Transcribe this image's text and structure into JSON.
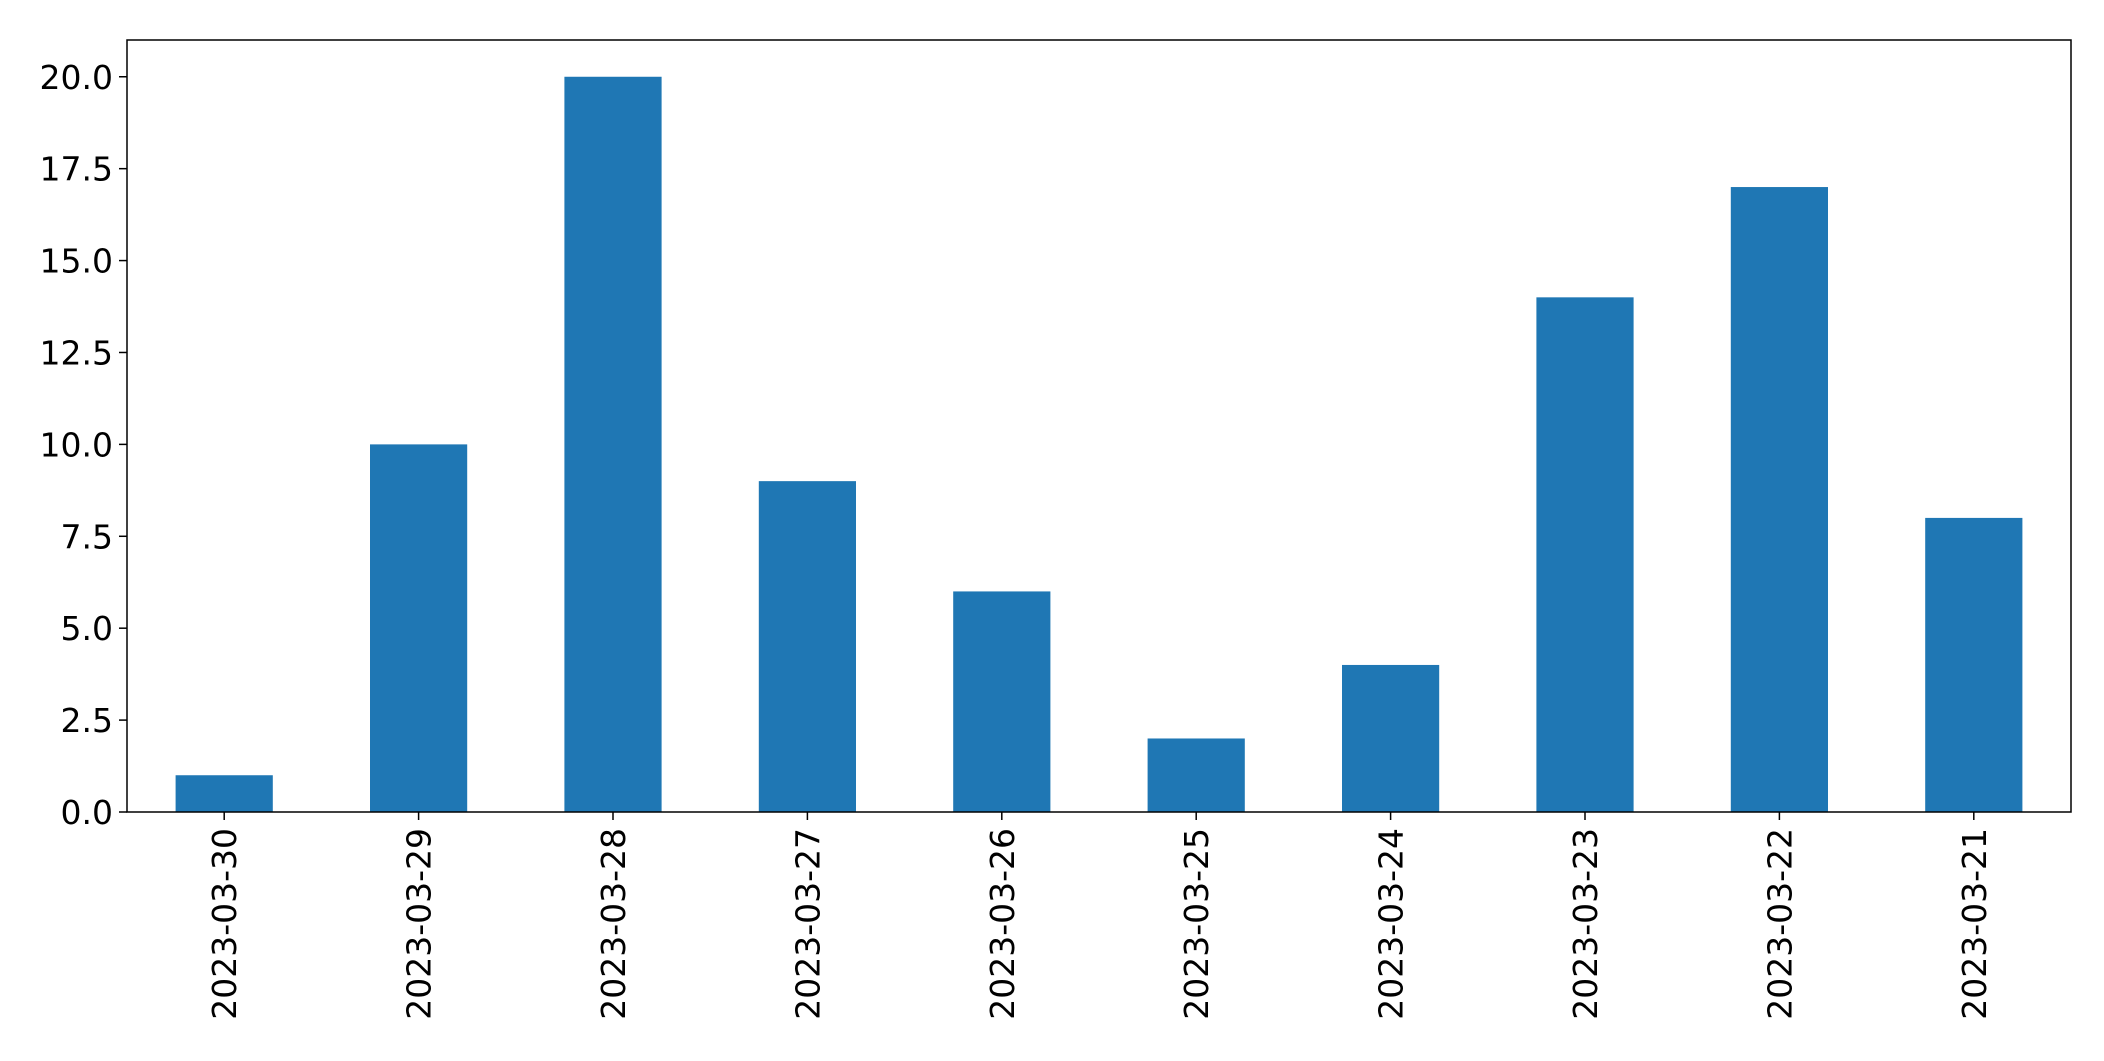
{
  "colors": {
    "bar": "#1f77b4",
    "axis": "#000000",
    "background": "#ffffff"
  },
  "chart_data": {
    "type": "bar",
    "title": "",
    "xlabel": "",
    "ylabel": "",
    "categories": [
      "2023-03-30",
      "2023-03-29",
      "2023-03-28",
      "2023-03-27",
      "2023-03-26",
      "2023-03-25",
      "2023-03-24",
      "2023-03-23",
      "2023-03-22",
      "2023-03-21"
    ],
    "values": [
      1,
      10,
      20,
      9,
      6,
      2,
      4,
      14,
      17,
      8
    ],
    "ylim": [
      0,
      21
    ],
    "yticks": [
      0.0,
      2.5,
      5.0,
      7.5,
      10.0,
      12.5,
      15.0,
      17.5,
      20.0
    ],
    "ytick_labels": [
      "0.0",
      "2.5",
      "5.0",
      "7.5",
      "10.0",
      "12.5",
      "15.0",
      "17.5",
      "20.0"
    ],
    "x_tick_rotation": "vertical",
    "grid": false,
    "legend": "none"
  }
}
